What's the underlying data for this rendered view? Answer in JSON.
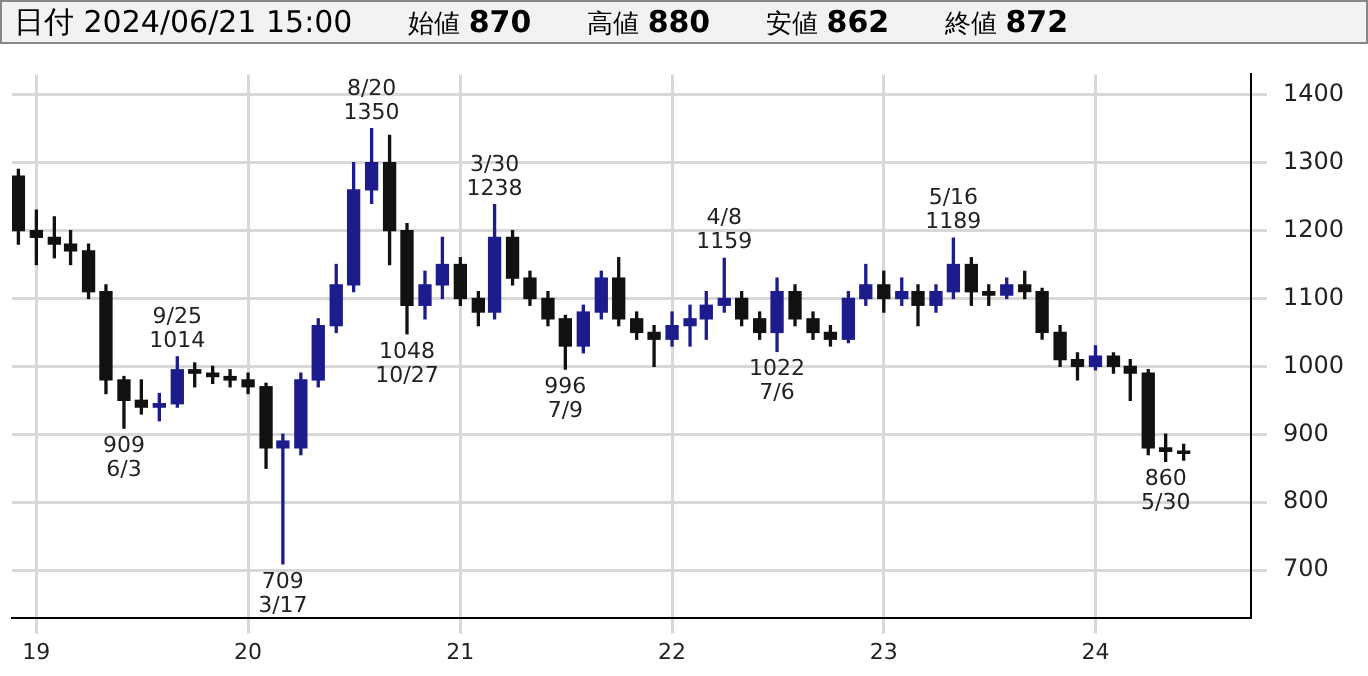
{
  "chart_data": {
    "type": "candlestick",
    "title": "日付 2024/06/21 15:00",
    "annotations": [
      "始値 870",
      "高値 880",
      "安値 862",
      "終値 872",
      {
        "text": "909\n6/3",
        "x": "2019-06",
        "y": 909
      },
      {
        "text": "9/25\n1014",
        "x": "2019-09",
        "y": 1014
      },
      {
        "text": "709\n3/17",
        "x": "2020-03",
        "y": 709
      },
      {
        "text": "8/20\n1350",
        "x": "2020-08",
        "y": 1350
      },
      {
        "text": "1048\n10/27",
        "x": "2020-10",
        "y": 1048
      },
      {
        "text": "3/30\n1238",
        "x": "2021-03",
        "y": 1238
      },
      {
        "text": "996\n7/9",
        "x": "2021-07",
        "y": 996
      },
      {
        "text": "4/8\n1159",
        "x": "2022-04",
        "y": 1159
      },
      {
        "text": "1022\n7/6",
        "x": "2022-07",
        "y": 1022
      },
      {
        "text": "5/16\n1189",
        "x": "2023-05",
        "y": 1189
      },
      {
        "text": "860\n5/30",
        "x": "2024-05",
        "y": 860
      }
    ],
    "x": [
      "2018-12",
      "2019-01",
      "2019-02",
      "2019-03",
      "2019-04",
      "2019-05",
      "2019-06",
      "2019-07",
      "2019-08",
      "2019-09",
      "2019-10",
      "2019-11",
      "2019-12",
      "2020-01",
      "2020-02",
      "2020-03",
      "2020-04",
      "2020-05",
      "2020-06",
      "2020-07",
      "2020-08",
      "2020-09",
      "2020-10",
      "2020-11",
      "2020-12",
      "2021-01",
      "2021-02",
      "2021-03",
      "2021-04",
      "2021-05",
      "2021-06",
      "2021-07",
      "2021-08",
      "2021-09",
      "2021-10",
      "2021-11",
      "2021-12",
      "2022-01",
      "2022-02",
      "2022-03",
      "2022-04",
      "2022-05",
      "2022-06",
      "2022-07",
      "2022-08",
      "2022-09",
      "2022-10",
      "2022-11",
      "2022-12",
      "2023-01",
      "2023-02",
      "2023-03",
      "2023-04",
      "2023-05",
      "2023-06",
      "2023-07",
      "2023-08",
      "2023-09",
      "2023-10",
      "2023-11",
      "2023-12",
      "2024-01",
      "2024-02",
      "2024-03",
      "2024-04",
      "2024-05",
      "2024-06"
    ],
    "ohlc": [
      [
        1280,
        1290,
        1180,
        1200
      ],
      [
        1200,
        1230,
        1150,
        1190
      ],
      [
        1190,
        1220,
        1160,
        1180
      ],
      [
        1180,
        1200,
        1150,
        1170
      ],
      [
        1170,
        1180,
        1100,
        1110
      ],
      [
        1110,
        1120,
        960,
        980
      ],
      [
        980,
        985,
        909,
        950
      ],
      [
        950,
        980,
        930,
        940
      ],
      [
        940,
        960,
        920,
        945
      ],
      [
        945,
        1014,
        940,
        995
      ],
      [
        995,
        1005,
        970,
        990
      ],
      [
        990,
        1000,
        975,
        985
      ],
      [
        985,
        995,
        970,
        980
      ],
      [
        980,
        990,
        960,
        970
      ],
      [
        970,
        975,
        850,
        880
      ],
      [
        880,
        900,
        709,
        890
      ],
      [
        880,
        990,
        870,
        980
      ],
      [
        980,
        1070,
        970,
        1060
      ],
      [
        1060,
        1150,
        1050,
        1120
      ],
      [
        1120,
        1300,
        1110,
        1260
      ],
      [
        1260,
        1350,
        1240,
        1300
      ],
      [
        1300,
        1340,
        1150,
        1200
      ],
      [
        1200,
        1210,
        1048,
        1090
      ],
      [
        1090,
        1140,
        1070,
        1120
      ],
      [
        1120,
        1190,
        1100,
        1150
      ],
      [
        1150,
        1160,
        1090,
        1100
      ],
      [
        1100,
        1110,
        1060,
        1080
      ],
      [
        1080,
        1238,
        1070,
        1190
      ],
      [
        1190,
        1200,
        1120,
        1130
      ],
      [
        1130,
        1140,
        1090,
        1100
      ],
      [
        1100,
        1110,
        1060,
        1070
      ],
      [
        1070,
        1075,
        996,
        1030
      ],
      [
        1030,
        1090,
        1020,
        1080
      ],
      [
        1080,
        1140,
        1070,
        1130
      ],
      [
        1130,
        1160,
        1060,
        1070
      ],
      [
        1070,
        1080,
        1040,
        1050
      ],
      [
        1050,
        1060,
        1000,
        1040
      ],
      [
        1040,
        1080,
        1030,
        1060
      ],
      [
        1060,
        1090,
        1030,
        1070
      ],
      [
        1070,
        1110,
        1040,
        1090
      ],
      [
        1090,
        1159,
        1080,
        1100
      ],
      [
        1100,
        1110,
        1060,
        1070
      ],
      [
        1070,
        1080,
        1040,
        1050
      ],
      [
        1050,
        1130,
        1022,
        1110
      ],
      [
        1110,
        1120,
        1060,
        1070
      ],
      [
        1070,
        1080,
        1040,
        1050
      ],
      [
        1050,
        1060,
        1030,
        1040
      ],
      [
        1040,
        1110,
        1035,
        1100
      ],
      [
        1100,
        1150,
        1090,
        1120
      ],
      [
        1120,
        1140,
        1080,
        1100
      ],
      [
        1100,
        1130,
        1090,
        1110
      ],
      [
        1110,
        1120,
        1060,
        1090
      ],
      [
        1090,
        1120,
        1080,
        1110
      ],
      [
        1110,
        1189,
        1100,
        1150
      ],
      [
        1150,
        1160,
        1090,
        1110
      ],
      [
        1110,
        1120,
        1090,
        1105
      ],
      [
        1105,
        1130,
        1100,
        1120
      ],
      [
        1120,
        1140,
        1100,
        1110
      ],
      [
        1110,
        1115,
        1040,
        1050
      ],
      [
        1050,
        1060,
        1000,
        1010
      ],
      [
        1010,
        1020,
        980,
        1000
      ],
      [
        1000,
        1030,
        995,
        1015
      ],
      [
        1015,
        1020,
        990,
        1000
      ],
      [
        1000,
        1010,
        950,
        990
      ],
      [
        990,
        995,
        870,
        880
      ],
      [
        880,
        900,
        860,
        875
      ],
      [
        875,
        885,
        862,
        872
      ]
    ],
    "colors": [
      "#111111",
      "#111111",
      "#111111",
      "#111111",
      "#111111",
      "#111111",
      "#111111",
      "#111111",
      "#1c1c8c",
      "#1c1c8c",
      "#111111",
      "#111111",
      "#111111",
      "#111111",
      "#111111",
      "#1c1c8c",
      "#1c1c8c",
      "#1c1c8c",
      "#1c1c8c",
      "#1c1c8c",
      "#1c1c8c",
      "#111111",
      "#111111",
      "#1c1c8c",
      "#1c1c8c",
      "#111111",
      "#111111",
      "#1c1c8c",
      "#111111",
      "#111111",
      "#111111",
      "#111111",
      "#1c1c8c",
      "#1c1c8c",
      "#111111",
      "#111111",
      "#111111",
      "#1c1c8c",
      "#1c1c8c",
      "#1c1c8c",
      "#1c1c8c",
      "#111111",
      "#111111",
      "#1c1c8c",
      "#111111",
      "#111111",
      "#111111",
      "#1c1c8c",
      "#1c1c8c",
      "#111111",
      "#1c1c8c",
      "#111111",
      "#1c1c8c",
      "#1c1c8c",
      "#111111",
      "#111111",
      "#1c1c8c",
      "#111111",
      "#111111",
      "#111111",
      "#111111",
      "#1c1c8c",
      "#111111",
      "#111111",
      "#111111",
      "#111111",
      "#111111"
    ],
    "xlim": [
      "2018-11-20",
      "2024-09-25"
    ],
    "xticks": [
      {
        "value": "2019",
        "label": "19"
      },
      {
        "value": "2020",
        "label": "20"
      },
      {
        "value": "2021",
        "label": "21"
      },
      {
        "value": "2022",
        "label": "22"
      },
      {
        "value": "2023",
        "label": "23"
      },
      {
        "value": "2024",
        "label": "24"
      }
    ],
    "ylim": [
      630,
      1430
    ],
    "yticks": [
      700,
      800,
      900,
      1000,
      1100,
      1200,
      1300,
      1400
    ],
    "grid": true,
    "legend": false
  }
}
